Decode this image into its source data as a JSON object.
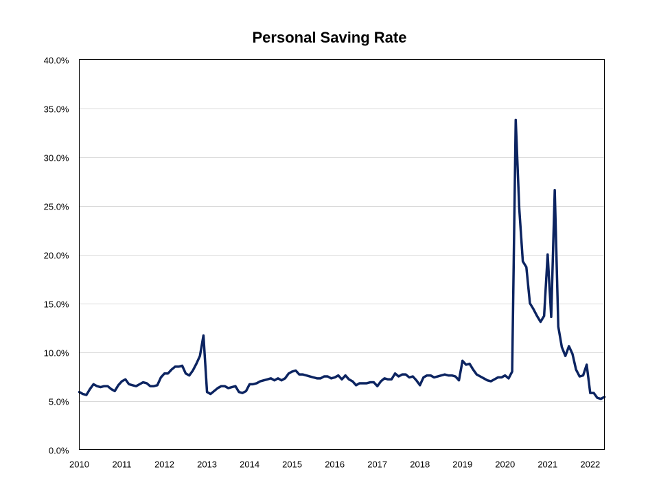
{
  "chart_data": {
    "type": "line",
    "title": "Personal Saving Rate",
    "xlabel": "",
    "ylabel": "",
    "ylim": [
      0,
      40
    ],
    "xlim": [
      "2010-01",
      "2022-05"
    ],
    "y_ticks": [
      "0.0%",
      "5.0%",
      "10.0%",
      "15.0%",
      "20.0%",
      "25.0%",
      "30.0%",
      "35.0%",
      "40.0%"
    ],
    "x_ticks": [
      "2010",
      "2011",
      "2012",
      "2013",
      "2014",
      "2015",
      "2016",
      "2017",
      "2018",
      "2019",
      "2020",
      "2021",
      "2022"
    ],
    "grid": "horizontal",
    "legend": "none",
    "line_color": "#0c2461",
    "series": [
      {
        "x": [
          "2010-01",
          "2010-02",
          "2010-03",
          "2010-04",
          "2010-05",
          "2010-06",
          "2010-07",
          "2010-08",
          "2010-09",
          "2010-10",
          "2010-11",
          "2010-12",
          "2011-01",
          "2011-02",
          "2011-03",
          "2011-04",
          "2011-05",
          "2011-06",
          "2011-07",
          "2011-08",
          "2011-09",
          "2011-10",
          "2011-11",
          "2011-12",
          "2012-01",
          "2012-02",
          "2012-03",
          "2012-04",
          "2012-05",
          "2012-06",
          "2012-07",
          "2012-08",
          "2012-09",
          "2012-10",
          "2012-11",
          "2012-12",
          "2013-01",
          "2013-02",
          "2013-03",
          "2013-04",
          "2013-05",
          "2013-06",
          "2013-07",
          "2013-08",
          "2013-09",
          "2013-10",
          "2013-11",
          "2013-12",
          "2014-01",
          "2014-02",
          "2014-03",
          "2014-04",
          "2014-05",
          "2014-06",
          "2014-07",
          "2014-08",
          "2014-09",
          "2014-10",
          "2014-11",
          "2014-12",
          "2015-01",
          "2015-02",
          "2015-03",
          "2015-04",
          "2015-05",
          "2015-06",
          "2015-07",
          "2015-08",
          "2015-09",
          "2015-10",
          "2015-11",
          "2015-12",
          "2016-01",
          "2016-02",
          "2016-03",
          "2016-04",
          "2016-05",
          "2016-06",
          "2016-07",
          "2016-08",
          "2016-09",
          "2016-10",
          "2016-11",
          "2016-12",
          "2017-01",
          "2017-02",
          "2017-03",
          "2017-04",
          "2017-05",
          "2017-06",
          "2017-07",
          "2017-08",
          "2017-09",
          "2017-10",
          "2017-11",
          "2017-12",
          "2018-01",
          "2018-02",
          "2018-03",
          "2018-04",
          "2018-05",
          "2018-06",
          "2018-07",
          "2018-08",
          "2018-09",
          "2018-10",
          "2018-11",
          "2018-12",
          "2019-01",
          "2019-02",
          "2019-03",
          "2019-04",
          "2019-05",
          "2019-06",
          "2019-07",
          "2019-08",
          "2019-09",
          "2019-10",
          "2019-11",
          "2019-12",
          "2020-01",
          "2020-02",
          "2020-03",
          "2020-04",
          "2020-05",
          "2020-06",
          "2020-07",
          "2020-08",
          "2020-09",
          "2020-10",
          "2020-11",
          "2020-12",
          "2021-01",
          "2021-02",
          "2021-03",
          "2021-04",
          "2021-05",
          "2021-06",
          "2021-07",
          "2021-08",
          "2021-09",
          "2021-10",
          "2021-11",
          "2021-12",
          "2022-01",
          "2022-02",
          "2022-03",
          "2022-04",
          "2022-05"
        ],
        "values": [
          5.9,
          5.7,
          5.6,
          6.2,
          6.7,
          6.5,
          6.4,
          6.5,
          6.5,
          6.2,
          6.0,
          6.6,
          7.0,
          7.2,
          6.7,
          6.6,
          6.5,
          6.7,
          6.9,
          6.8,
          6.5,
          6.5,
          6.6,
          7.4,
          7.8,
          7.8,
          8.2,
          8.5,
          8.5,
          8.6,
          7.8,
          7.6,
          8.1,
          8.8,
          9.6,
          11.7,
          5.9,
          5.7,
          6.0,
          6.3,
          6.5,
          6.5,
          6.3,
          6.4,
          6.5,
          5.9,
          5.8,
          6.0,
          6.7,
          6.7,
          6.8,
          7.0,
          7.1,
          7.2,
          7.3,
          7.1,
          7.3,
          7.1,
          7.3,
          7.8,
          8.0,
          8.1,
          7.7,
          7.7,
          7.6,
          7.5,
          7.4,
          7.3,
          7.3,
          7.5,
          7.5,
          7.3,
          7.4,
          7.6,
          7.2,
          7.6,
          7.2,
          7.0,
          6.6,
          6.8,
          6.8,
          6.8,
          6.9,
          6.9,
          6.5,
          7.0,
          7.3,
          7.2,
          7.2,
          7.8,
          7.5,
          7.7,
          7.7,
          7.4,
          7.5,
          7.1,
          6.6,
          7.4,
          7.6,
          7.6,
          7.4,
          7.5,
          7.6,
          7.7,
          7.6,
          7.6,
          7.5,
          7.1,
          9.1,
          8.7,
          8.8,
          8.2,
          7.7,
          7.5,
          7.3,
          7.1,
          7.0,
          7.2,
          7.4,
          7.4,
          7.6,
          7.3,
          8.0,
          33.8,
          24.7,
          19.3,
          18.7,
          15.0,
          14.4,
          13.7,
          13.1,
          13.7,
          20.0,
          13.6,
          26.6,
          12.6,
          10.5,
          9.6,
          10.6,
          9.8,
          8.2,
          7.5,
          7.6,
          8.7,
          5.8,
          5.8,
          5.3,
          5.2,
          5.4
        ]
      }
    ]
  }
}
